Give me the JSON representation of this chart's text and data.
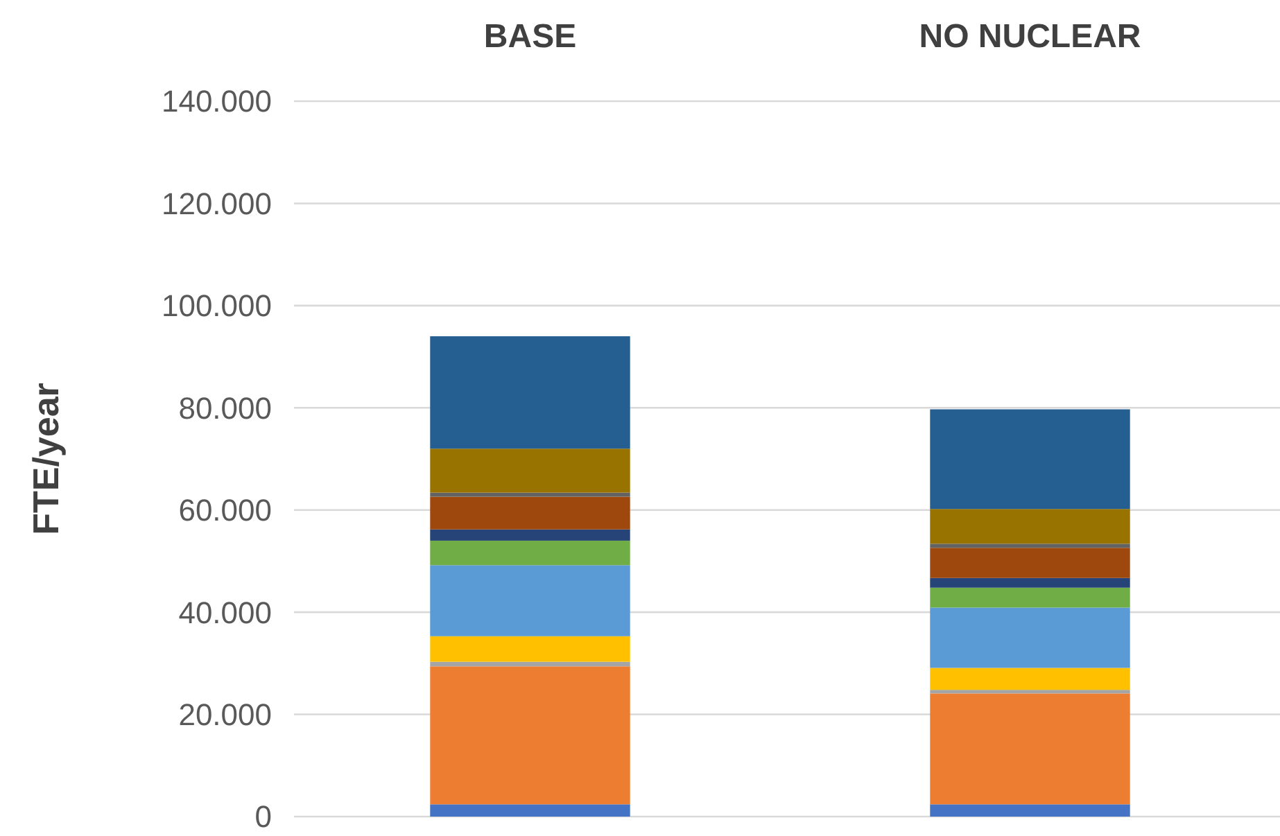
{
  "chart_data": {
    "type": "bar",
    "stacked": true,
    "ylabel": "FTE/year",
    "categories": [
      "BASE",
      "NO NUCLEAR"
    ],
    "series": [
      {
        "color": "#4472c4",
        "values": [
          2400,
          2400
        ]
      },
      {
        "color": "#ed7d31",
        "values": [
          27000,
          21700
        ]
      },
      {
        "color": "#a5a5a5",
        "values": [
          900,
          700
        ]
      },
      {
        "color": "#ffc000",
        "values": [
          5000,
          4300
        ]
      },
      {
        "color": "#5b9bd5",
        "values": [
          13900,
          11800
        ]
      },
      {
        "color": "#70ad47",
        "values": [
          4800,
          3900
        ]
      },
      {
        "color": "#264478",
        "values": [
          2200,
          1900
        ]
      },
      {
        "color": "#9e480e",
        "values": [
          6400,
          5900
        ]
      },
      {
        "color": "#636363",
        "values": [
          800,
          800
        ]
      },
      {
        "color": "#997300",
        "values": [
          8600,
          6800
        ]
      },
      {
        "color": "#255e91",
        "values": [
          22000,
          19500
        ]
      }
    ],
    "ylim": [
      0,
      140000
    ],
    "yticks": [
      {
        "value": 0,
        "label": "0"
      },
      {
        "value": 20000,
        "label": "20.000"
      },
      {
        "value": 40000,
        "label": "40.000"
      },
      {
        "value": 60000,
        "label": "60.000"
      },
      {
        "value": 80000,
        "label": "80.000"
      },
      {
        "value": 100000,
        "label": "100.000"
      },
      {
        "value": 120000,
        "label": "120.000"
      },
      {
        "value": 140000,
        "label": "140.000"
      }
    ],
    "grid": "y"
  }
}
